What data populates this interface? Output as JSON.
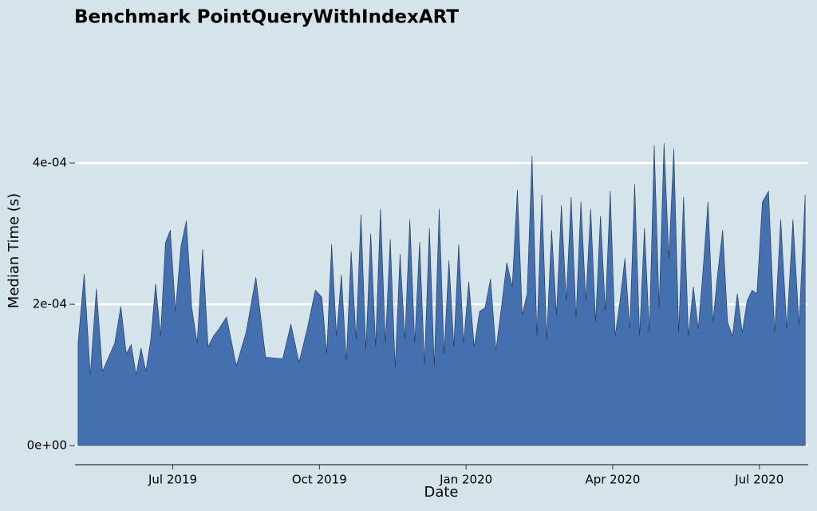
{
  "chart_data": {
    "type": "area",
    "title": "Benchmark PointQueryWithIndexART",
    "x_label": "Date",
    "y_label": "Median Time (s)",
    "color": "#4470b0",
    "x": [
      "2019-05",
      "2019-05",
      "2019-05",
      "2019-05",
      "2019-05",
      "2019-05",
      "2019-05",
      "2019-05",
      "2019-06",
      "2019-06",
      "2019-06",
      "2019-06",
      "2019-06",
      "2019-06",
      "2019-06",
      "2019-06",
      "2019-06",
      "2019-06",
      "2019-07",
      "2019-07",
      "2019-07",
      "2019-07",
      "2019-07",
      "2019-07",
      "2019-07",
      "2019-07",
      "2019-07",
      "2019-08",
      "2019-08",
      "2019-08",
      "2019-08",
      "2019-08",
      "2019-09",
      "2019-09",
      "2019-09",
      "2019-09",
      "2019-09",
      "2019-09",
      "2019-10",
      "2019-10",
      "2019-10",
      "2019-10",
      "2019-10",
      "2019-10",
      "2019-10",
      "2019-10",
      "2019-10",
      "2019-10",
      "2019-11",
      "2019-11",
      "2019-11",
      "2019-11",
      "2019-11",
      "2019-11",
      "2019-11",
      "2019-11",
      "2019-11",
      "2019-11",
      "2019-12",
      "2019-12",
      "2019-12",
      "2019-12",
      "2019-12",
      "2019-12",
      "2019-12",
      "2019-12",
      "2019-12",
      "2019-12",
      "2020-01",
      "2020-01",
      "2020-01",
      "2020-01",
      "2020-01",
      "2020-01",
      "2020-01",
      "2020-01",
      "2020-01",
      "2020-02",
      "2020-02",
      "2020-02",
      "2020-02",
      "2020-02",
      "2020-02",
      "2020-02",
      "2020-02",
      "2020-02",
      "2020-02",
      "2020-03",
      "2020-03",
      "2020-03",
      "2020-03",
      "2020-03",
      "2020-03",
      "2020-03",
      "2020-03",
      "2020-03",
      "2020-03",
      "2020-04",
      "2020-04",
      "2020-04",
      "2020-04",
      "2020-04",
      "2020-04",
      "2020-04",
      "2020-04",
      "2020-04",
      "2020-04",
      "2020-05",
      "2020-05",
      "2020-05",
      "2020-05",
      "2020-05",
      "2020-05",
      "2020-05",
      "2020-05",
      "2020-05",
      "2020-05",
      "2020-06",
      "2020-06",
      "2020-06",
      "2020-06",
      "2020-06",
      "2020-06",
      "2020-06",
      "2020-06",
      "2020-06",
      "2020-06",
      "2020-07",
      "2020-07",
      "2020-07",
      "2020-07",
      "2020-07",
      "2020-07",
      "2020-07",
      "2020-07"
    ],
    "values": [
      0.000145,
      0.000243,
      0.0001,
      0.000222,
      0.000105,
      0.000125,
      0.000145,
      0.000197,
      0.00013,
      0.000143,
      0.0001,
      0.000138,
      0.000105,
      0.00015,
      0.000229,
      0.000155,
      0.000287,
      0.000305,
      0.00019,
      0.000282,
      0.000318,
      0.000195,
      0.000145,
      0.000278,
      0.00014,
      0.000155,
      0.000165,
      0.000182,
      0.000113,
      0.00016,
      0.000238,
      0.000125,
      0.000124,
      0.000123,
      0.000172,
      0.000118,
      0.000165,
      0.00022,
      0.00021,
      0.00013,
      0.000285,
      0.000155,
      0.000242,
      0.00012,
      0.000275,
      0.00015,
      0.000327,
      0.000135,
      0.0003,
      0.00014,
      0.000335,
      0.000145,
      0.000292,
      0.00011,
      0.000271,
      0.00015,
      0.00032,
      0.000145,
      0.000288,
      0.000115,
      0.000308,
      0.000112,
      0.000335,
      0.00013,
      0.000262,
      0.00014,
      0.000285,
      0.000145,
      0.000232,
      0.00014,
      0.00019,
      0.000195,
      0.000236,
      0.000135,
      0.000195,
      0.000259,
      0.000225,
      0.000362,
      0.000185,
      0.000215,
      0.00041,
      0.000155,
      0.000355,
      0.00015,
      0.000305,
      0.000185,
      0.00034,
      0.000205,
      0.000352,
      0.00018,
      0.000345,
      0.000205,
      0.000335,
      0.000175,
      0.000325,
      0.00019,
      0.00036,
      0.000155,
      0.000205,
      0.000265,
      0.000165,
      0.00037,
      0.000155,
      0.000308,
      0.00016,
      0.000425,
      0.000195,
      0.000428,
      0.000265,
      0.00042,
      0.00016,
      0.000352,
      0.000155,
      0.000225,
      0.000165,
      0.00025,
      0.000345,
      0.000175,
      0.000245,
      0.000305,
      0.000175,
      0.000155,
      0.000215,
      0.00016,
      0.000205,
      0.00022,
      0.000215,
      0.000345,
      0.00036,
      0.00016,
      0.00032,
      0.000165,
      0.00032,
      0.00017,
      0.000355
    ],
    "xlim": [
      "2019-05",
      "2020-08"
    ],
    "xticks": [
      {
        "value": "2019-07",
        "label": "Jul 2019"
      },
      {
        "value": "2019-10",
        "label": "Oct 2019"
      },
      {
        "value": "2020-01",
        "label": "Jan 2020"
      },
      {
        "value": "2020-04",
        "label": "Apr 2020"
      },
      {
        "value": "2020-07",
        "label": "Jul 2020"
      }
    ],
    "ylim": [
      -2.7e-05,
      0.00049
    ],
    "yticks": [
      {
        "value": 0,
        "label": "0e+00"
      },
      {
        "value": 0.0002,
        "label": "2e-04"
      },
      {
        "value": 0.0004,
        "label": "4e-04"
      }
    ],
    "grid": true
  }
}
